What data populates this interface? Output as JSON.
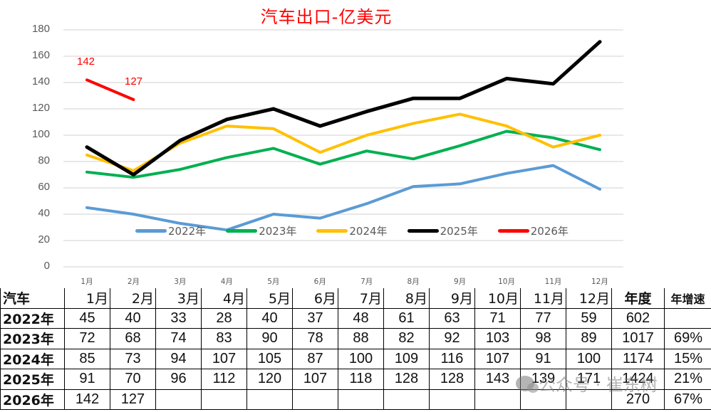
{
  "chart_data": {
    "type": "line",
    "title": "汽车出口-亿美元",
    "xlabel": "",
    "ylabel": "",
    "categories": [
      "1月",
      "2月",
      "3月",
      "4月",
      "5月",
      "6月",
      "7月",
      "8月",
      "9月",
      "10月",
      "11月",
      "12月"
    ],
    "ylim": [
      0,
      180
    ],
    "yticks": [
      0,
      20,
      40,
      60,
      80,
      100,
      120,
      140,
      160,
      180
    ],
    "grid": true,
    "legend_position": "bottom-inside",
    "series": [
      {
        "name": "2022年",
        "color": "#5b9bd5",
        "values": [
          45,
          40,
          33,
          28,
          40,
          37,
          48,
          61,
          63,
          71,
          77,
          59
        ]
      },
      {
        "name": "2023年",
        "color": "#00b050",
        "values": [
          72,
          68,
          74,
          83,
          90,
          78,
          88,
          82,
          92,
          103,
          98,
          89
        ]
      },
      {
        "name": "2024年",
        "color": "#ffc000",
        "values": [
          85,
          73,
          94,
          107,
          105,
          87,
          100,
          109,
          116,
          107,
          91,
          100
        ]
      },
      {
        "name": "2025年",
        "color": "#000000",
        "values": [
          91,
          70,
          96,
          112,
          120,
          107,
          118,
          128,
          128,
          143,
          139,
          171
        ]
      },
      {
        "name": "2026年",
        "color": "#ff0000",
        "values": [
          142,
          127
        ],
        "data_labels": [
          "142",
          "127"
        ]
      }
    ]
  },
  "chart": {
    "title": "汽车出口-亿美元",
    "yticks": [
      "180",
      "160",
      "140",
      "120",
      "100",
      "80",
      "60",
      "40",
      "20",
      "0"
    ],
    "xticks": [
      "1月",
      "2月",
      "3月",
      "4月",
      "5月",
      "6月",
      "7月",
      "8月",
      "9月",
      "10月",
      "11月",
      "12月"
    ],
    "labels_2026": [
      "142",
      "127"
    ],
    "legend": [
      "2022年",
      "2023年",
      "2024年",
      "2025年",
      "2026年"
    ]
  },
  "table": {
    "corner": "汽车",
    "headers": [
      "1月",
      "2月",
      "3月",
      "4月",
      "5月",
      "6月",
      "7月",
      "8月",
      "9月",
      "10月",
      "11月",
      "12月"
    ],
    "annual_header": "年度",
    "growth_header": "年增速",
    "rows": [
      {
        "label": "2022年",
        "values": [
          "45",
          "40",
          "33",
          "28",
          "40",
          "37",
          "48",
          "61",
          "63",
          "71",
          "77",
          "59"
        ],
        "annual": "602",
        "growth": ""
      },
      {
        "label": "2023年",
        "values": [
          "72",
          "68",
          "74",
          "83",
          "90",
          "78",
          "88",
          "82",
          "92",
          "103",
          "98",
          "89"
        ],
        "annual": "1017",
        "growth": "69%"
      },
      {
        "label": "2024年",
        "values": [
          "85",
          "73",
          "94",
          "107",
          "105",
          "87",
          "100",
          "109",
          "116",
          "107",
          "91",
          "100"
        ],
        "annual": "1174",
        "growth": "15%"
      },
      {
        "label": "2025年",
        "values": [
          "91",
          "70",
          "96",
          "112",
          "120",
          "107",
          "118",
          "128",
          "128",
          "143",
          "139",
          "171"
        ],
        "annual": "1424",
        "growth": "21%"
      },
      {
        "label": "2026年",
        "values": [
          "142",
          "127",
          "",
          "",
          "",
          "",
          "",
          "",
          "",
          "",
          "",
          ""
        ],
        "annual": "270",
        "growth": "67%"
      }
    ]
  },
  "watermark": "公众号 · 崔东树"
}
